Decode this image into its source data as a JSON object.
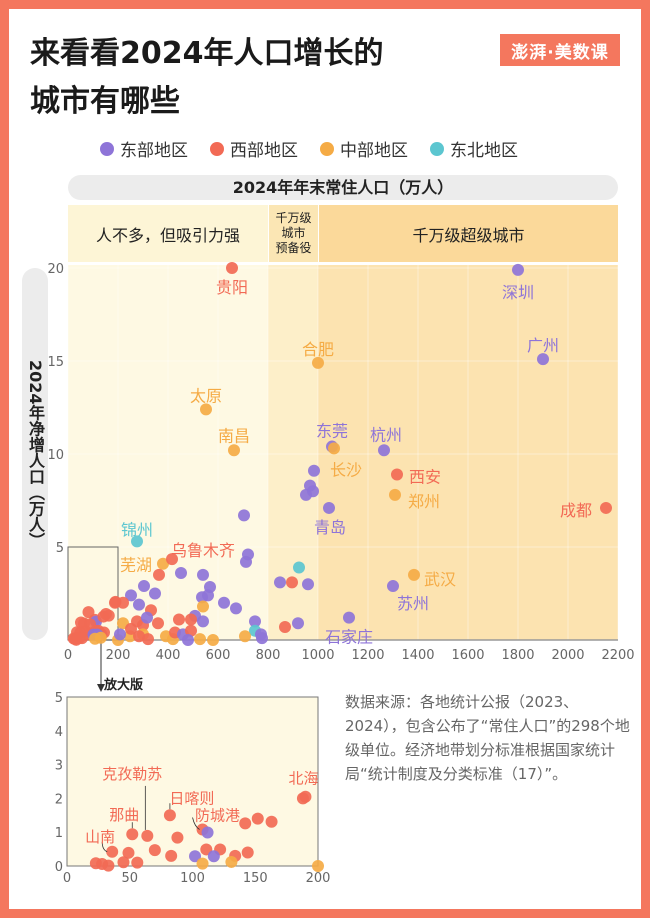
{
  "title_lines": [
    "来看看2024年人口增长的",
    "城市有哪些"
  ],
  "logo": "澎湃·美数课",
  "legend": [
    {
      "label": "东部地区",
      "color": "#8e74d8"
    },
    {
      "label": "西部地区",
      "color": "#f26a55"
    },
    {
      "label": "中部地区",
      "color": "#f5ab45"
    },
    {
      "label": "东北地区",
      "color": "#5cc6d0"
    }
  ],
  "bands": [
    {
      "label": "人不多，但吸引力强",
      "range": [
        0,
        800
      ]
    },
    {
      "label": "千万级城市预备役",
      "lines": [
        "千万级",
        "城市",
        "预备役"
      ],
      "range": [
        800,
        1000
      ]
    },
    {
      "label": "千万级超级城市",
      "range": [
        1000,
        2200
      ]
    }
  ],
  "zoom_label": "放大版",
  "source": "数据来源：各地统计公报（2023、2024），包含公布了“常住人口”的298个地级单位。经济地带划分标准根据国家统计局“统计制度及分类标准（17）”。",
  "chart_data": [
    {
      "type": "scatter",
      "xlabel": "2024年年末常住人口（万人）",
      "ylabel": "2024年净增人口（万人）",
      "xlim": [
        0,
        2200
      ],
      "ylim": [
        0,
        20
      ],
      "xticks": [
        0,
        200,
        400,
        600,
        800,
        1000,
        1200,
        1400,
        1600,
        1800,
        2000,
        2200
      ],
      "yticks": [
        5,
        10,
        15,
        20
      ],
      "grid": true,
      "legend": "top",
      "points": [
        {
          "x": 656,
          "y": 20,
          "r": "西部",
          "label": "贵阳"
        },
        {
          "x": 1800,
          "y": 19.9,
          "r": "东部",
          "label": "深圳"
        },
        {
          "x": 1900,
          "y": 15.1,
          "r": "东部",
          "label": "广州"
        },
        {
          "x": 1000,
          "y": 14.9,
          "r": "中部",
          "label": "合肥"
        },
        {
          "x": 552,
          "y": 12.4,
          "r": "中部",
          "label": "太原"
        },
        {
          "x": 664,
          "y": 10.2,
          "r": "中部",
          "label": "南昌"
        },
        {
          "x": 1056,
          "y": 10.4,
          "r": "东部",
          "label": "东莞"
        },
        {
          "x": 1064,
          "y": 10.3,
          "r": "中部",
          "label": "长沙"
        },
        {
          "x": 1264,
          "y": 10.2,
          "r": "东部",
          "label": "杭州"
        },
        {
          "x": 1316,
          "y": 8.9,
          "r": "西部",
          "label": "西安"
        },
        {
          "x": 1308,
          "y": 7.8,
          "r": "中部",
          "label": "郑州"
        },
        {
          "x": 2152,
          "y": 7.1,
          "r": "西部",
          "label": "成都"
        },
        {
          "x": 1044,
          "y": 7.1,
          "r": "东部",
          "label": "青岛"
        },
        {
          "x": 1384,
          "y": 3.5,
          "r": "中部",
          "label": "武汉"
        },
        {
          "x": 1300,
          "y": 2.9,
          "r": "东部",
          "label": "苏州"
        },
        {
          "x": 1124,
          "y": 1.2,
          "r": "东部",
          "label": "石家庄"
        },
        {
          "x": 276,
          "y": 5.3,
          "r": "东北",
          "label": "锦州"
        },
        {
          "x": 380,
          "y": 4.1,
          "r": "中部",
          "label": "芜湖"
        },
        {
          "x": 416,
          "y": 4.35,
          "r": "西部",
          "label": "乌鲁木齐"
        },
        {
          "x": 190,
          "y": 2.05,
          "r": "西部",
          "label": "北海"
        },
        {
          "x": 82,
          "y": 1.5,
          "r": "西部",
          "label": "日喀则"
        },
        {
          "x": 52,
          "y": 0.94,
          "r": "西部",
          "label": "那曲"
        },
        {
          "x": 64,
          "y": 0.89,
          "r": "西部",
          "label": "克孜勒苏"
        },
        {
          "x": 36,
          "y": 0.42,
          "r": "西部",
          "label": "山南"
        },
        {
          "x": 108,
          "y": 1.08,
          "r": "西部",
          "label": "防城港"
        },
        {
          "x": 984,
          "y": 9.1,
          "r": "东部"
        },
        {
          "x": 968,
          "y": 8.3,
          "r": "东部"
        },
        {
          "x": 980,
          "y": 8.0,
          "r": "东部"
        },
        {
          "x": 952,
          "y": 7.8,
          "r": "东部"
        },
        {
          "x": 704,
          "y": 6.7,
          "r": "东部"
        },
        {
          "x": 720,
          "y": 4.6,
          "r": "东部"
        },
        {
          "x": 712,
          "y": 4.2,
          "r": "东部"
        },
        {
          "x": 924,
          "y": 3.9,
          "r": "东北"
        },
        {
          "x": 848,
          "y": 3.1,
          "r": "东部"
        },
        {
          "x": 896,
          "y": 3.1,
          "r": "西部"
        },
        {
          "x": 960,
          "y": 3.0,
          "r": "东部"
        },
        {
          "x": 748,
          "y": 1.0,
          "r": "东部"
        },
        {
          "x": 748,
          "y": 0.5,
          "r": "东北"
        },
        {
          "x": 772,
          "y": 0.3,
          "r": "东部"
        },
        {
          "x": 776,
          "y": 0.1,
          "r": "东部"
        },
        {
          "x": 868,
          "y": 0.7,
          "r": "西部"
        },
        {
          "x": 920,
          "y": 0.9,
          "r": "东部"
        },
        {
          "x": 708,
          "y": 0.2,
          "r": "中部"
        },
        {
          "x": 364,
          "y": 3.5,
          "r": "西部"
        },
        {
          "x": 452,
          "y": 3.6,
          "r": "东部"
        },
        {
          "x": 540,
          "y": 3.5,
          "r": "东部"
        },
        {
          "x": 568,
          "y": 2.85,
          "r": "东部"
        },
        {
          "x": 560,
          "y": 2.4,
          "r": "东部"
        },
        {
          "x": 536,
          "y": 2.3,
          "r": "东部"
        },
        {
          "x": 304,
          "y": 2.9,
          "r": "东部"
        },
        {
          "x": 348,
          "y": 2.5,
          "r": "东部"
        },
        {
          "x": 252,
          "y": 2.4,
          "r": "东部"
        },
        {
          "x": 284,
          "y": 1.9,
          "r": "东部"
        },
        {
          "x": 188,
          "y": 2.0,
          "r": "西部"
        },
        {
          "x": 220,
          "y": 2.0,
          "r": "西部"
        },
        {
          "x": 332,
          "y": 1.6,
          "r": "西部"
        },
        {
          "x": 540,
          "y": 1.8,
          "r": "中部"
        },
        {
          "x": 624,
          "y": 2.0,
          "r": "东部"
        },
        {
          "x": 672,
          "y": 1.7,
          "r": "东部"
        },
        {
          "x": 508,
          "y": 1.3,
          "r": "东部"
        },
        {
          "x": 492,
          "y": 1.1,
          "r": "西部"
        },
        {
          "x": 444,
          "y": 1.1,
          "r": "西部"
        },
        {
          "x": 540,
          "y": 1.0,
          "r": "东部"
        },
        {
          "x": 360,
          "y": 0.9,
          "r": "西部"
        },
        {
          "x": 220,
          "y": 0.9,
          "r": "中部"
        },
        {
          "x": 276,
          "y": 1.0,
          "r": "西部"
        },
        {
          "x": 300,
          "y": 0.8,
          "r": "西部"
        },
        {
          "x": 316,
          "y": 1.2,
          "r": "东部"
        },
        {
          "x": 392,
          "y": 0.2,
          "r": "中部"
        },
        {
          "x": 420,
          "y": 0.05,
          "r": "中部"
        },
        {
          "x": 428,
          "y": 0.4,
          "r": "西部"
        },
        {
          "x": 460,
          "y": 0.3,
          "r": "东部"
        },
        {
          "x": 492,
          "y": 0.5,
          "r": "西部"
        },
        {
          "x": 480,
          "y": 0.0,
          "r": "东部"
        },
        {
          "x": 528,
          "y": 0.05,
          "r": "中部"
        },
        {
          "x": 580,
          "y": 0.0,
          "r": "中部"
        },
        {
          "x": 200,
          "y": 0.0,
          "r": "中部"
        },
        {
          "x": 248,
          "y": 0.2,
          "r": "中部"
        },
        {
          "x": 300,
          "y": 0.3,
          "r": "中部"
        },
        {
          "x": 320,
          "y": 0.05,
          "r": "西部"
        },
        {
          "x": 284,
          "y": 0.2,
          "r": "西部"
        },
        {
          "x": 252,
          "y": 0.6,
          "r": "西部"
        },
        {
          "x": 208,
          "y": 0.3,
          "r": "东部"
        },
        {
          "x": 112,
          "y": 0.99,
          "r": "东部"
        },
        {
          "x": 88,
          "y": 0.84,
          "r": "西部"
        },
        {
          "x": 142,
          "y": 1.26,
          "r": "西部"
        },
        {
          "x": 152,
          "y": 1.4,
          "r": "西部"
        },
        {
          "x": 163,
          "y": 1.31,
          "r": "西部"
        },
        {
          "x": 70,
          "y": 0.47,
          "r": "西部"
        },
        {
          "x": 49,
          "y": 0.39,
          "r": "西部"
        },
        {
          "x": 83,
          "y": 0.3,
          "r": "西部"
        },
        {
          "x": 111,
          "y": 0.49,
          "r": "西部"
        },
        {
          "x": 122,
          "y": 0.49,
          "r": "西部"
        },
        {
          "x": 134,
          "y": 0.3,
          "r": "西部"
        },
        {
          "x": 144,
          "y": 0.4,
          "r": "西部"
        },
        {
          "x": 102,
          "y": 0.29,
          "r": "东部"
        },
        {
          "x": 117,
          "y": 0.29,
          "r": "东部"
        },
        {
          "x": 108,
          "y": 0.07,
          "r": "中部"
        },
        {
          "x": 131,
          "y": 0.12,
          "r": "中部"
        },
        {
          "x": 23,
          "y": 0.08,
          "r": "西部"
        },
        {
          "x": 28,
          "y": 0.06,
          "r": "西部"
        },
        {
          "x": 33,
          "y": 0.01,
          "r": "西部"
        },
        {
          "x": 45,
          "y": 0.11,
          "r": "西部"
        },
        {
          "x": 56,
          "y": 0.1,
          "r": "西部"
        }
      ]
    },
    {
      "type": "scatter",
      "title": "放大版",
      "xlim": [
        0,
        200
      ],
      "ylim": [
        0,
        5
      ],
      "xticks": [
        0,
        50,
        100,
        150,
        200
      ],
      "yticks": [
        0,
        1,
        2,
        3,
        4,
        5
      ],
      "labels": [
        "北海",
        "日喀则",
        "那曲",
        "克孜勒苏",
        "山南",
        "防城港"
      ]
    }
  ],
  "region_colors": {
    "东部": "#8e74d8",
    "西部": "#f26a55",
    "中部": "#f5ab45",
    "东北": "#5cc6d0"
  }
}
